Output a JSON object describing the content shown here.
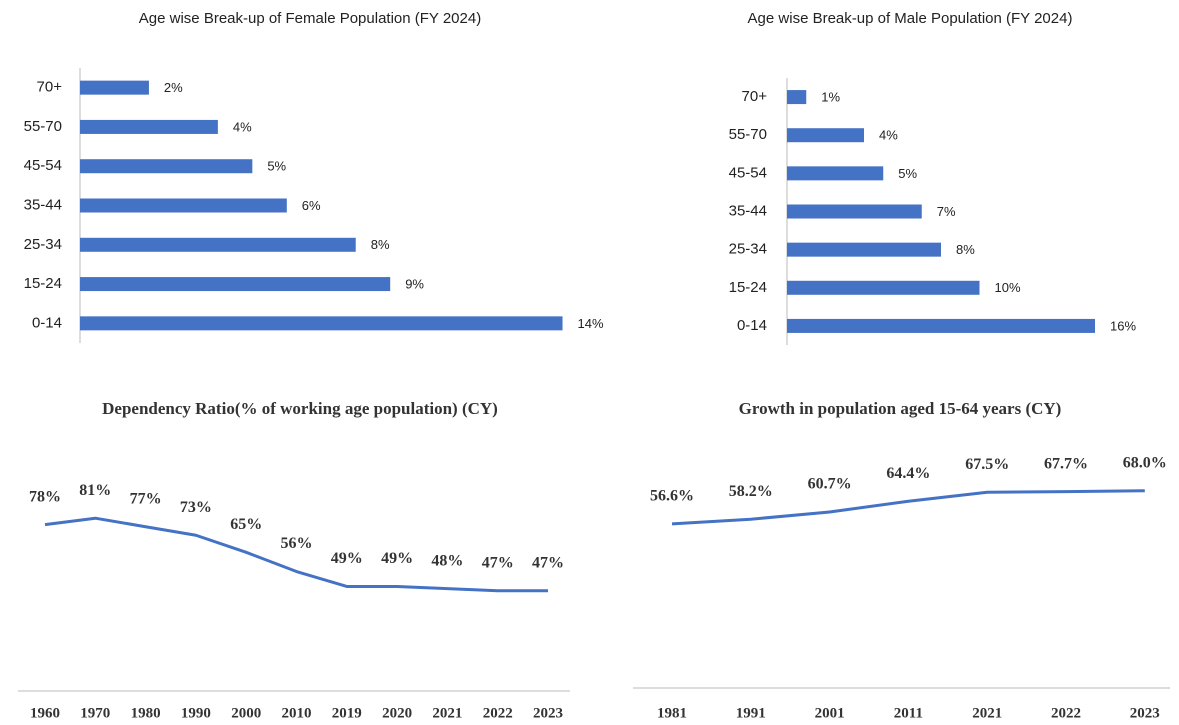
{
  "chart_data": [
    {
      "type": "hbar",
      "title": "Age wise Break-up of Female Population (FY 2024)",
      "categories": [
        "70+",
        "55-70",
        "45-54",
        "35-44",
        "25-34",
        "15-24",
        "0-14"
      ],
      "values": [
        2,
        4,
        5,
        6,
        8,
        9,
        14
      ],
      "value_labels": [
        "2%",
        "4%",
        "5%",
        "6%",
        "8%",
        "9%",
        "14%"
      ],
      "color": "#4472c4",
      "xlim": [
        0,
        15
      ]
    },
    {
      "type": "hbar",
      "title": "Age wise Break-up of Male Population (FY 2024)",
      "categories": [
        "70+",
        "55-70",
        "45-54",
        "35-44",
        "25-34",
        "15-24",
        "0-14"
      ],
      "values": [
        1,
        4,
        5,
        7,
        8,
        10,
        16
      ],
      "value_labels": [
        "1%",
        "4%",
        "5%",
        "7%",
        "8%",
        "10%",
        "16%"
      ],
      "color": "#4472c4",
      "xlim": [
        0,
        16
      ]
    },
    {
      "type": "line",
      "title": "Dependency Ratio(% of working age population) (CY)",
      "categories": [
        "1960",
        "1970",
        "1980",
        "1990",
        "2000",
        "2010",
        "2019",
        "2020",
        "2021",
        "2022",
        "2023"
      ],
      "values": [
        78,
        81,
        77,
        73,
        65,
        56,
        49,
        49,
        48,
        47,
        47
      ],
      "value_labels": [
        "78%",
        "81%",
        "77%",
        "73%",
        "65%",
        "56%",
        "49%",
        "49%",
        "48%",
        "47%",
        "47%"
      ],
      "color": "#4472c4",
      "ylim": [
        0,
        120
      ]
    },
    {
      "type": "line",
      "title": "Growth in population aged 15-64 years (CY)",
      "categories": [
        "1981",
        "1991",
        "2001",
        "2011",
        "2021",
        "2022",
        "2023"
      ],
      "values": [
        56.6,
        58.2,
        60.7,
        64.4,
        67.5,
        67.7,
        68.0
      ],
      "value_labels": [
        "56.6%",
        "58.2%",
        "60.7%",
        "64.4%",
        "67.5%",
        "67.7%",
        "68.0%"
      ],
      "color": "#4472c4",
      "ylim": [
        0,
        90
      ]
    }
  ]
}
